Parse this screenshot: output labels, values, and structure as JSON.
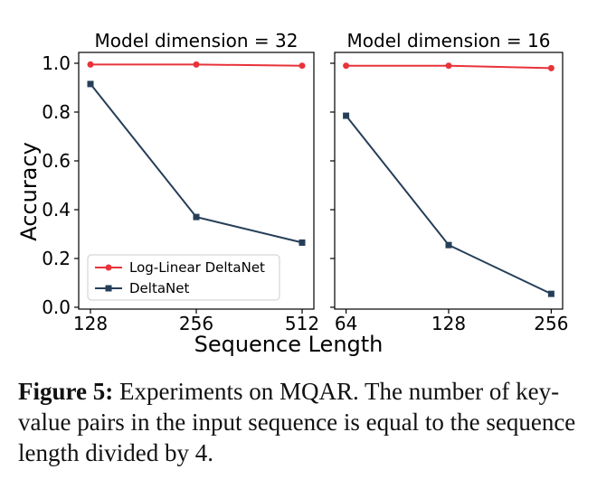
{
  "chart_data": [
    {
      "type": "line",
      "title": "Model dimension = 32",
      "xlabel": "Sequence Length",
      "ylabel": "Accuracy",
      "x_scale": "log2",
      "categories": [
        "128",
        "256",
        "512"
      ],
      "x": [
        128,
        256,
        512
      ],
      "ylim": [
        0.0,
        1.0
      ],
      "yticks": [
        "0.0",
        "0.2",
        "0.4",
        "0.6",
        "0.8",
        "1.0"
      ],
      "grid": false,
      "legend": "bottom-left",
      "series": [
        {
          "name": "Log-Linear DeltaNet",
          "color": "#e8333a",
          "marker": "circle",
          "values": [
            0.995,
            0.995,
            0.99
          ]
        },
        {
          "name": "DeltaNet",
          "color": "#263f58",
          "marker": "square",
          "values": [
            0.915,
            0.37,
            0.265
          ]
        }
      ]
    },
    {
      "type": "line",
      "title": "Model dimension = 16",
      "xlabel": "Sequence Length",
      "ylabel": "",
      "x_scale": "log2",
      "categories": [
        "64",
        "128",
        "256"
      ],
      "x": [
        64,
        128,
        256
      ],
      "ylim": [
        0.0,
        1.0
      ],
      "grid": false,
      "series": [
        {
          "name": "Log-Linear DeltaNet",
          "color": "#e8333a",
          "marker": "circle",
          "values": [
            0.99,
            0.99,
            0.98
          ]
        },
        {
          "name": "DeltaNet",
          "color": "#263f58",
          "marker": "square",
          "values": [
            0.785,
            0.255,
            0.055
          ]
        }
      ]
    }
  ],
  "caption": {
    "label": "Figure 5:",
    "text": "Experiments on MQAR. The number of key-value pairs in the input sequence is equal to the sequence length divided by",
    "math": "4",
    "end": "."
  }
}
